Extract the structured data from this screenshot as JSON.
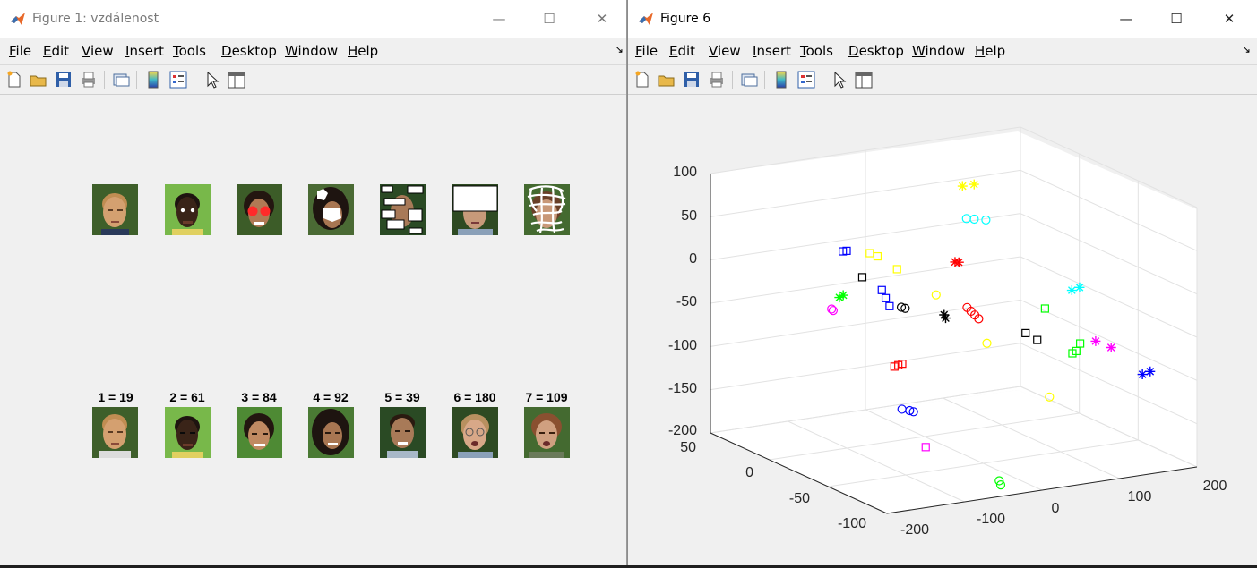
{
  "window1": {
    "title": "Figure 1: vzdálenost",
    "menu": [
      "File",
      "Edit",
      "View",
      "Insert",
      "Tools",
      "Desktop",
      "Window",
      "Help"
    ],
    "top_faces": [
      "original-face",
      "face-with-white-eyes",
      "face-with-red-eye-circles",
      "face-with-white-polygons",
      "face-with-white-rectangles",
      "face-with-white-box",
      "face-with-white-scribble"
    ],
    "labels": [
      "1 = 19",
      "2 = 61",
      "3 = 84",
      "4 = 92",
      "5 = 39",
      "6 = 180",
      "7 = 109"
    ]
  },
  "window2": {
    "title": "Figure 6",
    "menu": [
      "File",
      "Edit",
      "View",
      "Insert",
      "Tools",
      "Desktop",
      "Window",
      "Help"
    ]
  },
  "toolbar_icons": [
    "new-figure-icon",
    "open-icon",
    "save-icon",
    "print-icon",
    "link-plot-icon",
    "colorbar-icon",
    "legend-icon",
    "pointer-icon",
    "property-editor-icon"
  ],
  "title_buttons": {
    "minimize": "—",
    "maximize": "☐",
    "close": "✕"
  },
  "chart_data": {
    "type": "scatter",
    "title": "",
    "xlabel": "",
    "ylabel": "",
    "zlabel": "",
    "z_ticks": [
      "100",
      "50",
      "0",
      "-50",
      "-100",
      "-150",
      "-200"
    ],
    "y_ticks": [
      "50",
      "0",
      "-50",
      "-100"
    ],
    "x_ticks": [
      "-200",
      "-100",
      "0",
      "100",
      "200"
    ],
    "xlim": [
      -200,
      200
    ],
    "ylim": [
      -100,
      50
    ],
    "zlim": [
      -200,
      100
    ],
    "grid": true,
    "colors": {
      "red": "#ff0000",
      "green": "#00ff00",
      "blue": "#0000ff",
      "magenta": "#ff00ff",
      "cyan": "#00ffff",
      "yellow": "#ffff00",
      "black": "#000000"
    },
    "series": [
      {
        "color": "red",
        "marker": "square",
        "values": [
          [
            -160,
            -80,
            -48
          ],
          [
            -155,
            -80,
            -47
          ],
          [
            -150,
            -80,
            -46
          ]
        ]
      },
      {
        "color": "red",
        "marker": "star",
        "values": [
          [
            70,
            20,
            -20
          ],
          [
            75,
            20,
            -21
          ]
        ]
      },
      {
        "color": "red",
        "marker": "circle",
        "values": [
          [
            40,
            -10,
            -50
          ],
          [
            45,
            -10,
            -55
          ],
          [
            50,
            -10,
            -60
          ],
          [
            55,
            -10,
            -65
          ]
        ]
      },
      {
        "color": "green",
        "marker": "star",
        "values": [
          [
            -140,
            -20,
            -8
          ],
          [
            -135,
            -20,
            -6
          ]
        ]
      },
      {
        "color": "green",
        "marker": "square",
        "values": [
          [
            100,
            -60,
            -80
          ],
          [
            105,
            -60,
            -78
          ],
          [
            110,
            -60,
            -70
          ],
          [
            95,
            -40,
            -40
          ]
        ]
      },
      {
        "color": "green",
        "marker": "circle",
        "values": [
          [
            -40,
            -90,
            -190
          ],
          [
            -38,
            -90,
            -195
          ]
        ]
      },
      {
        "color": "blue",
        "marker": "square",
        "values": [
          [
            -90,
            10,
            20
          ],
          [
            -85,
            10,
            20
          ],
          [
            -70,
            -10,
            -15
          ],
          [
            -65,
            -10,
            -25
          ],
          [
            -60,
            -10,
            -35
          ]
        ]
      },
      {
        "color": "blue",
        "marker": "circle",
        "values": [
          [
            -120,
            -60,
            -115
          ],
          [
            -110,
            -60,
            -118
          ],
          [
            -105,
            -60,
            -120
          ]
        ]
      },
      {
        "color": "blue",
        "marker": "star",
        "values": [
          [
            160,
            -80,
            -100
          ],
          [
            170,
            -80,
            -98
          ]
        ]
      },
      {
        "color": "magenta",
        "marker": "circle",
        "values": [
          [
            -150,
            -20,
            -20
          ],
          [
            -148,
            -20,
            -22
          ]
        ]
      },
      {
        "color": "magenta",
        "marker": "square",
        "values": [
          [
            -150,
            -100,
            -130
          ]
        ]
      },
      {
        "color": "magenta",
        "marker": "star",
        "values": [
          [
            150,
            -60,
            -80
          ],
          [
            130,
            -60,
            -70
          ]
        ]
      },
      {
        "color": "cyan",
        "marker": "circle",
        "values": [
          [
            100,
            30,
            20
          ],
          [
            110,
            30,
            18
          ],
          [
            125,
            30,
            15
          ]
        ]
      },
      {
        "color": "cyan",
        "marker": "star",
        "values": [
          [
            160,
            -20,
            -40
          ],
          [
            170,
            -20,
            -38
          ]
        ]
      },
      {
        "color": "yellow",
        "marker": "star",
        "values": [
          [
            110,
            40,
            50
          ],
          [
            125,
            40,
            50
          ]
        ]
      },
      {
        "color": "yellow",
        "marker": "square",
        "values": [
          [
            -40,
            20,
            5
          ],
          [
            -30,
            20,
            0
          ],
          [
            -20,
            10,
            -10
          ]
        ]
      },
      {
        "color": "yellow",
        "marker": "circle",
        "values": [
          [
            0,
            -10,
            -30
          ],
          [
            20,
            -40,
            -70
          ],
          [
            40,
            -80,
            -110
          ]
        ]
      },
      {
        "color": "black",
        "marker": "square",
        "values": [
          [
            -80,
            0,
            -5
          ],
          [
            70,
            -40,
            -65
          ],
          [
            85,
            -40,
            -75
          ]
        ]
      },
      {
        "color": "black",
        "marker": "circle",
        "values": [
          [
            -60,
            -20,
            -30
          ],
          [
            -55,
            -20,
            -32
          ]
        ]
      },
      {
        "color": "black",
        "marker": "star",
        "values": [
          [
            -20,
            -30,
            -38
          ],
          [
            -18,
            -30,
            -42
          ]
        ]
      }
    ]
  }
}
